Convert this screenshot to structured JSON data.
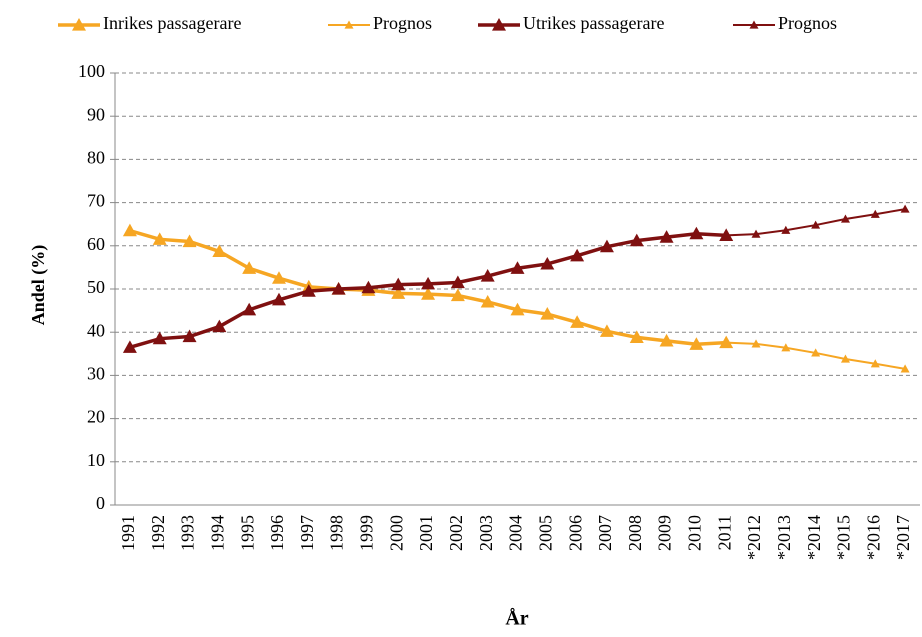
{
  "chart_data": {
    "type": "line",
    "x_label": "År",
    "y_label": "Andel (%)",
    "categories": [
      "1991",
      "1992",
      "1993",
      "1994",
      "1995",
      "1996",
      "1997",
      "1998",
      "1999",
      "2000",
      "2001",
      "2002",
      "2003",
      "2004",
      "2005",
      "2006",
      "2007",
      "2008",
      "2009",
      "2010",
      "2011",
      "*2012",
      "*2013",
      "*2014",
      "*2015",
      "*2016",
      "*2017"
    ],
    "series": [
      {
        "name": "Inrikes passagerare",
        "color": "#f6a623",
        "line_width": 3.5,
        "values": [
          63.5,
          61.5,
          61,
          58.7,
          54.8,
          52.5,
          50.5,
          50,
          49.7,
          49,
          48.8,
          48.5,
          47,
          45.2,
          44.2,
          42.3,
          40.2,
          38.8,
          38,
          37.2,
          37.6,
          null,
          null,
          null,
          null,
          null,
          null
        ]
      },
      {
        "name": "Prognos",
        "color": "#f6a623",
        "line_width": 2,
        "values": [
          null,
          null,
          null,
          null,
          null,
          null,
          null,
          null,
          null,
          null,
          null,
          null,
          null,
          null,
          null,
          null,
          null,
          null,
          null,
          null,
          37.6,
          37.3,
          36.4,
          35.2,
          33.8,
          32.7,
          31.5
        ]
      },
      {
        "name": "Utrikes passagerare",
        "color": "#7f1010",
        "line_width": 3.5,
        "values": [
          36.5,
          38.5,
          39,
          41.3,
          45.2,
          47.5,
          49.5,
          50,
          50.3,
          51,
          51.2,
          51.5,
          53,
          54.8,
          55.8,
          57.7,
          59.8,
          61.2,
          62,
          62.8,
          62.4,
          null,
          null,
          null,
          null,
          null,
          null
        ]
      },
      {
        "name": "Prognos",
        "color": "#7f1010",
        "line_width": 2,
        "values": [
          null,
          null,
          null,
          null,
          null,
          null,
          null,
          null,
          null,
          null,
          null,
          null,
          null,
          null,
          null,
          null,
          null,
          null,
          null,
          null,
          62.4,
          62.7,
          63.6,
          64.8,
          66.2,
          67.3,
          68.5
        ]
      }
    ],
    "ylim": [
      0,
      100
    ],
    "yticks": [
      0,
      10,
      20,
      30,
      40,
      50,
      60,
      70,
      80,
      90,
      100
    ],
    "grid": true,
    "legend": "top"
  }
}
